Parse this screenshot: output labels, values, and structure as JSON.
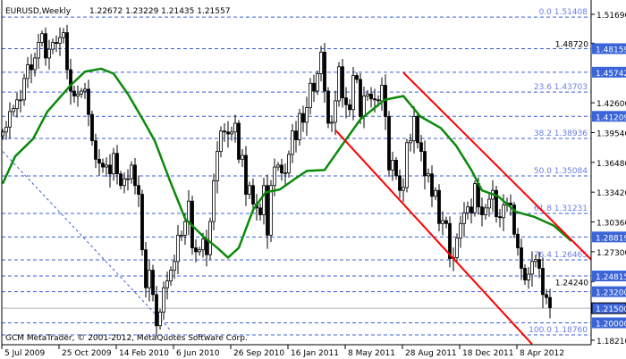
{
  "header": {
    "symbol": "EURUSD,Weekly",
    "ohlc": "1.22672 1.23229 1.21435 1.21557"
  },
  "footer": {
    "copyright": "GCM MetaTrader, © 2001-2012, MetaQuotes Software Corp."
  },
  "colors": {
    "background": "#ffffff",
    "grid": "#3a5fd6",
    "ma": "#0a8a0a",
    "channel": "#ff0000",
    "label_bg": "#3a64d8",
    "bull": "#ffffff",
    "bear": "#000000",
    "fib_text": "#6a7fe6"
  },
  "chart_data": {
    "type": "candlestick",
    "ylim": [
      1.1821,
      1.5169
    ],
    "y_ticks": [
      "1.51690",
      "1.48720",
      "1.42600",
      "1.39540",
      "1.36480",
      "1.33420",
      "1.30360",
      "1.27300",
      "1.24240",
      "1.18210"
    ],
    "x_ticks": [
      "5 Jul 2009",
      "25 Oct 2009",
      "14 Feb 2010",
      "6 Jun 2010",
      "26 Sep 2010",
      "16 Jan 2011",
      "8 May 2011",
      "28 Aug 2011",
      "18 Dec 2011",
      "8 Apr 2012"
    ],
    "x_tick_interval_weeks": 16,
    "closes": [
      1.396,
      1.401,
      1.417,
      1.42,
      1.429,
      1.429,
      1.451,
      1.465,
      1.46,
      1.472,
      1.488,
      1.497,
      1.472,
      1.481,
      1.488,
      1.487,
      1.493,
      1.498,
      1.46,
      1.438,
      1.433,
      1.435,
      1.438,
      1.44,
      1.414,
      1.387,
      1.368,
      1.364,
      1.36,
      1.362,
      1.353,
      1.374,
      1.353,
      1.341,
      1.348,
      1.348,
      1.362,
      1.341,
      1.332,
      1.275,
      1.236,
      1.254,
      1.229,
      1.197,
      1.211,
      1.236,
      1.243,
      1.254,
      1.263,
      1.29,
      1.29,
      1.304,
      1.325,
      1.277,
      1.273,
      1.275,
      1.286,
      1.27,
      1.304,
      1.346,
      1.376,
      1.397,
      1.396,
      1.394,
      1.396,
      1.405,
      1.368,
      1.372,
      1.332,
      1.341,
      1.322,
      1.318,
      1.311,
      1.341,
      1.29,
      1.341,
      1.36,
      1.362,
      1.354,
      1.354,
      1.373,
      1.397,
      1.388,
      1.415,
      1.406,
      1.421,
      1.446,
      1.438,
      1.456,
      1.478,
      1.438,
      1.405,
      1.406,
      1.428,
      1.463,
      1.431,
      1.424,
      1.419,
      1.454,
      1.45,
      1.412,
      1.433,
      1.435,
      1.43,
      1.429,
      1.428,
      1.444,
      1.412,
      1.357,
      1.367,
      1.351,
      1.336,
      1.339,
      1.385,
      1.387,
      1.412,
      1.385,
      1.376,
      1.351,
      1.353,
      1.33,
      1.336,
      1.302,
      1.305,
      1.302,
      1.266,
      1.267,
      1.287,
      1.302,
      1.313,
      1.319,
      1.313,
      1.343,
      1.319,
      1.311,
      1.318,
      1.327,
      1.336,
      1.309,
      1.308,
      1.321,
      1.323,
      1.321,
      1.291,
      1.277,
      1.256,
      1.244,
      1.25,
      1.263,
      1.265,
      1.256,
      1.229,
      1.226,
      1.21557
    ],
    "moving_average": [
      [
        0,
        1.343
      ],
      [
        3.5,
        1.371
      ],
      [
        8.5,
        1.389
      ],
      [
        12.5,
        1.417
      ],
      [
        19,
        1.444
      ],
      [
        23,
        1.458
      ],
      [
        27.5,
        1.461
      ],
      [
        31,
        1.456
      ],
      [
        35,
        1.435
      ],
      [
        39,
        1.41
      ],
      [
        42.5,
        1.387
      ],
      [
        46.75,
        1.346
      ],
      [
        51,
        1.307
      ],
      [
        56,
        1.289
      ],
      [
        60,
        1.277
      ],
      [
        63,
        1.267
      ],
      [
        66,
        1.277
      ],
      [
        70,
        1.316
      ],
      [
        73.5,
        1.334
      ],
      [
        77.5,
        1.337
      ],
      [
        81.75,
        1.348
      ],
      [
        85,
        1.356
      ],
      [
        90,
        1.357
      ],
      [
        94,
        1.378
      ],
      [
        100,
        1.409
      ],
      [
        106.75,
        1.429
      ],
      [
        112,
        1.433
      ],
      [
        116.75,
        1.412
      ],
      [
        122.5,
        1.4
      ],
      [
        126.75,
        1.382
      ],
      [
        131,
        1.357
      ],
      [
        134,
        1.336
      ],
      [
        138.5,
        1.33
      ],
      [
        143.5,
        1.314
      ],
      [
        148.5,
        1.309
      ],
      [
        154,
        1.3
      ],
      [
        159,
        1.284
      ]
    ],
    "channel_lines": [
      [
        [
          112,
          1.457
        ],
        [
          164.5,
          1.265
        ]
      ],
      [
        [
          93,
          1.398
        ],
        [
          148,
          1.178
        ]
      ]
    ],
    "fib_trendline": [
      [
        0,
        1.376
      ],
      [
        47,
        1.192
      ]
    ],
    "fib_levels": [
      {
        "label": "0.0 1.51408",
        "price": 1.51408
      },
      {
        "label": "23.6 1.43703",
        "price": 1.43703
      },
      {
        "label": "38.2 1.38936",
        "price": 1.38936
      },
      {
        "label": "50.0 1.35084",
        "price": 1.35084
      },
      {
        "label": "61.8 1.31231",
        "price": 1.31231
      },
      {
        "label": "76.4 1.26465",
        "price": 1.26465
      },
      {
        "label": "100.0 1.18760",
        "price": 1.1876
      }
    ],
    "price_lines": [
      {
        "label": "1.48159",
        "price": 1.48159
      },
      {
        "label": "1.45742",
        "price": 1.45742
      },
      {
        "label": "1.41209",
        "price": 1.41209
      },
      {
        "label": "1.28819",
        "price": 1.28819
      },
      {
        "label": "1.24815",
        "price": 1.24815
      },
      {
        "label": "1.23200",
        "price": 1.232
      },
      {
        "label": "1.21500",
        "price": 1.215,
        "current": true
      },
      {
        "label": "1.20000",
        "price": 1.2
      }
    ]
  }
}
